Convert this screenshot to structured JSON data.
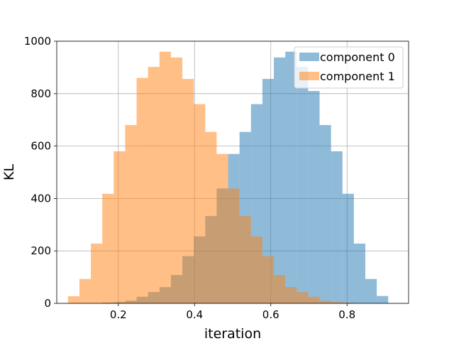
{
  "chart_data": {
    "type": "bar",
    "subtype": "histogram",
    "title": "",
    "xlabel": "iteration",
    "ylabel": "KL",
    "xlim": [
      0.0385,
      0.9615
    ],
    "ylim": [
      0,
      1000
    ],
    "xticks": [
      "0.2",
      "0.4",
      "0.6",
      "0.8"
    ],
    "xtick_values": [
      0.2,
      0.4,
      0.6,
      0.8
    ],
    "yticks": [
      "0",
      "200",
      "400",
      "600",
      "800",
      "1000"
    ],
    "ytick_values": [
      0,
      200,
      400,
      600,
      800,
      1000
    ],
    "grid": true,
    "legend_position": "top-right",
    "series": [
      {
        "name": "component 0",
        "color": "#1f77b4",
        "opacity": 0.5,
        "bins": [
          [
            0.158,
            0.188,
            3
          ],
          [
            0.188,
            0.218,
            5
          ],
          [
            0.218,
            0.248,
            10
          ],
          [
            0.248,
            0.278,
            25
          ],
          [
            0.278,
            0.308,
            43
          ],
          [
            0.308,
            0.338,
            62
          ],
          [
            0.338,
            0.368,
            108
          ],
          [
            0.368,
            0.398,
            180
          ],
          [
            0.398,
            0.428,
            255
          ],
          [
            0.428,
            0.458,
            333
          ],
          [
            0.458,
            0.488,
            438
          ],
          [
            0.488,
            0.518,
            570
          ],
          [
            0.518,
            0.548,
            654
          ],
          [
            0.548,
            0.578,
            760
          ],
          [
            0.578,
            0.608,
            856
          ],
          [
            0.608,
            0.638,
            938
          ],
          [
            0.638,
            0.668,
            960
          ],
          [
            0.668,
            0.698,
            902
          ],
          [
            0.698,
            0.728,
            810
          ],
          [
            0.728,
            0.758,
            680
          ],
          [
            0.758,
            0.788,
            580
          ],
          [
            0.788,
            0.818,
            418
          ],
          [
            0.818,
            0.848,
            228
          ],
          [
            0.848,
            0.878,
            93
          ],
          [
            0.878,
            0.908,
            28
          ]
        ]
      },
      {
        "name": "component 1",
        "color": "#ff7f0e",
        "opacity": 0.5,
        "bins": [
          [
            0.068,
            0.098,
            27
          ],
          [
            0.098,
            0.128,
            93
          ],
          [
            0.128,
            0.158,
            228
          ],
          [
            0.158,
            0.188,
            418
          ],
          [
            0.188,
            0.218,
            580
          ],
          [
            0.218,
            0.248,
            680
          ],
          [
            0.248,
            0.278,
            860
          ],
          [
            0.278,
            0.308,
            902
          ],
          [
            0.308,
            0.338,
            960
          ],
          [
            0.338,
            0.368,
            938
          ],
          [
            0.368,
            0.398,
            856
          ],
          [
            0.398,
            0.428,
            760
          ],
          [
            0.428,
            0.458,
            654
          ],
          [
            0.458,
            0.488,
            570
          ],
          [
            0.488,
            0.518,
            438
          ],
          [
            0.518,
            0.548,
            333
          ],
          [
            0.548,
            0.578,
            255
          ],
          [
            0.578,
            0.608,
            180
          ],
          [
            0.608,
            0.638,
            108
          ],
          [
            0.638,
            0.668,
            62
          ],
          [
            0.668,
            0.698,
            43
          ],
          [
            0.698,
            0.728,
            25
          ],
          [
            0.728,
            0.758,
            10
          ],
          [
            0.758,
            0.788,
            5
          ],
          [
            0.788,
            0.818,
            3
          ]
        ]
      }
    ]
  }
}
